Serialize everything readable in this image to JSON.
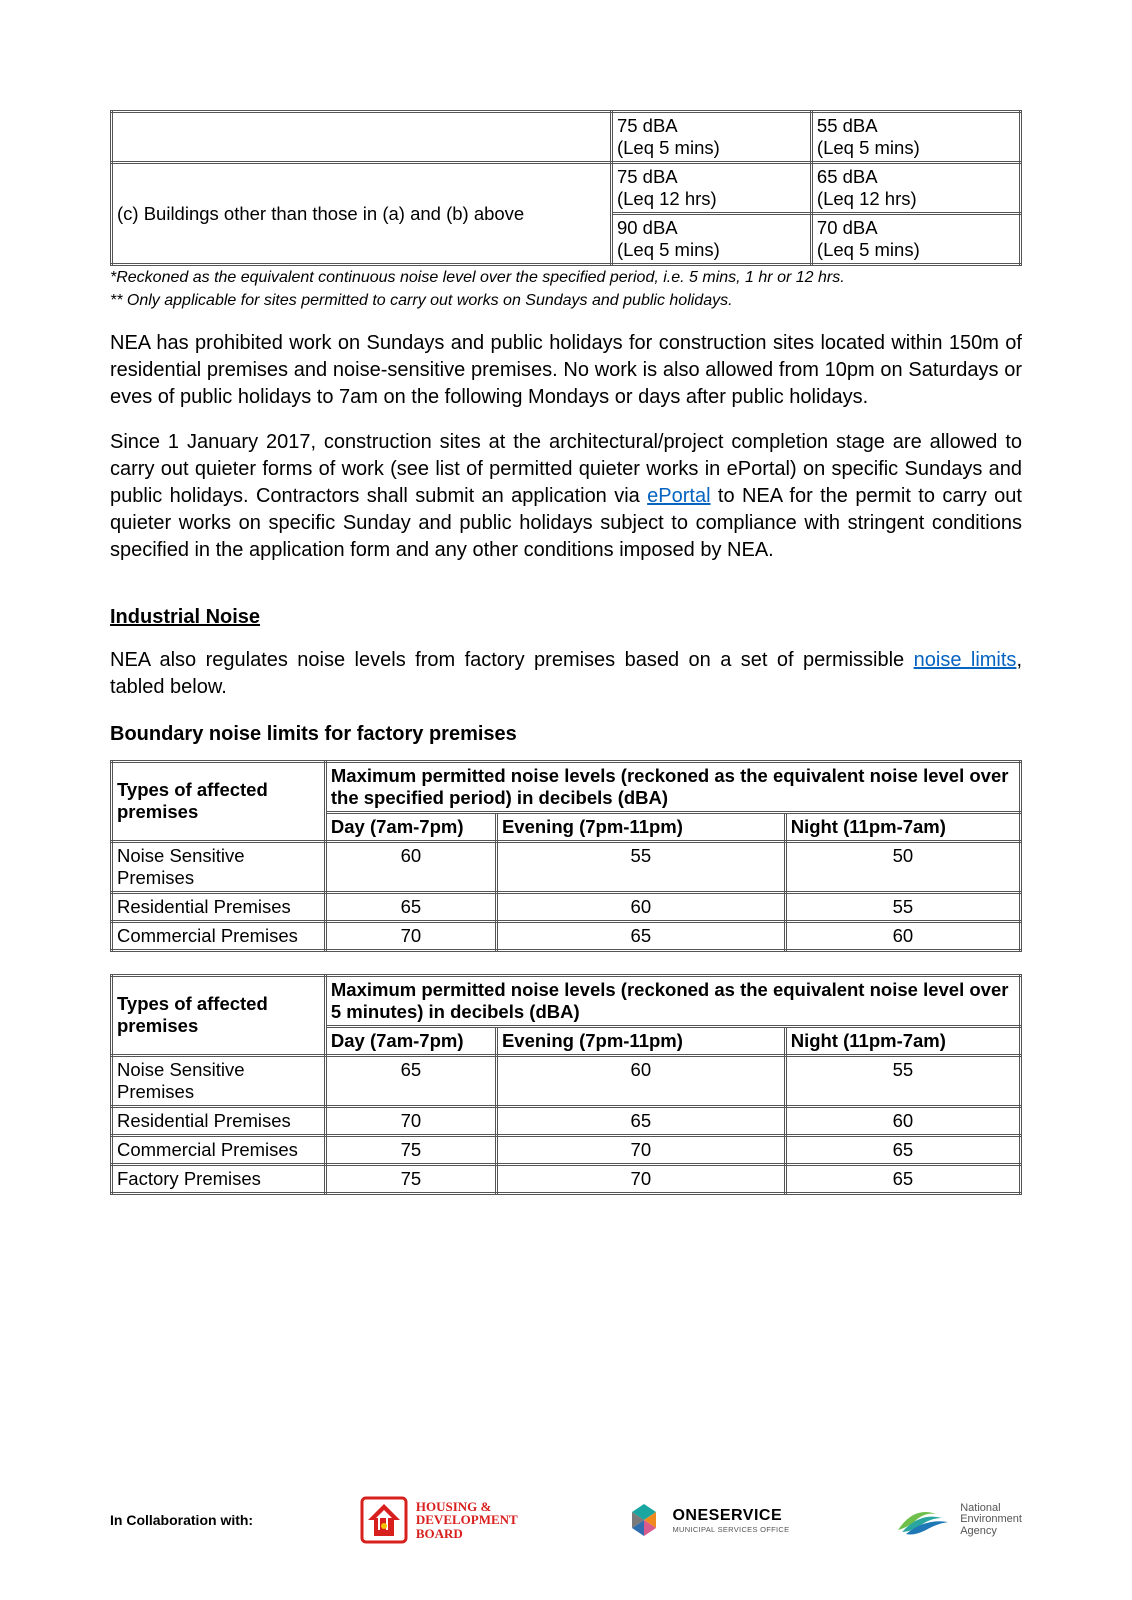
{
  "top_table": {
    "rows": [
      {
        "label": "",
        "c1": "75 dBA\n(Leq 5 mins)",
        "c2": "55 dBA\n(Leq 5 mins)"
      }
    ],
    "merged": {
      "label": "(c) Buildings other than those in (a) and (b) above",
      "r1c1": "75 dBA\n(Leq 12 hrs)",
      "r1c2": "65 dBA\n(Leq 12 hrs)",
      "r2c1": "90 dBA\n(Leq 5 mins)",
      "r2c2": "70 dBA\n(Leq 5 mins)"
    }
  },
  "footnotes": {
    "f1": "*Reckoned as the equivalent continuous noise level over the specified period, i.e. 5 mins, 1 hr or 12 hrs.",
    "f2": "** Only applicable for sites permitted to carry out works on Sundays and public holidays."
  },
  "para1": "NEA has prohibited work on Sundays and public holidays for construction sites located within 150m of residential premises and noise-sensitive premises. No work is also allowed from 10pm on Saturdays or eves of public holidays to 7am on the following Mondays or days after public holidays.",
  "para2a": "Since 1 January 2017, construction sites at the architectural/project completion stage are allowed to carry out quieter forms of work (see list of permitted quieter works in ePortal) on specific Sundays and public holidays. Contractors shall submit an application via ",
  "para2_link": "ePortal",
  "para2b": " to NEA for the permit to carry out quieter works on specific Sunday and public holidays subject to compliance with stringent conditions specified in the application form and any other conditions imposed by NEA.",
  "section_heading": "Industrial Noise",
  "para3a": "NEA also regulates noise levels from factory premises based on a set of permissible ",
  "para3_link": "noise limits",
  "para3b": ", tabled below.",
  "subheading": "Boundary noise limits for factory premises",
  "factory_tables": {
    "header_col1": "Types of affected premises",
    "day": "Day (7am-7pm)",
    "evening": "Evening (7pm-11pm)",
    "night": "Night (11pm-7am)",
    "t1_caption": "Maximum permitted noise levels (reckoned as the equivalent noise level over the specified period) in decibels (dBA)",
    "t1_rows": [
      {
        "label": "Noise Sensitive Premises",
        "d": "60",
        "e": "55",
        "n": "50"
      },
      {
        "label": "Residential Premises",
        "d": "65",
        "e": "60",
        "n": "55"
      },
      {
        "label": "Commercial Premises",
        "d": "70",
        "e": "65",
        "n": "60"
      }
    ],
    "t2_caption": "Maximum permitted noise levels (reckoned as the equivalent noise level over 5 minutes) in decibels (dBA)",
    "t2_rows": [
      {
        "label": "Noise Sensitive Premises",
        "d": "65",
        "e": "60",
        "n": "55"
      },
      {
        "label": "Residential Premises",
        "d": "70",
        "e": "65",
        "n": "60"
      },
      {
        "label": "Commercial Premises",
        "d": "75",
        "e": "70",
        "n": "65"
      },
      {
        "label": "Factory Premises",
        "d": "75",
        "e": "70",
        "n": "65"
      }
    ]
  },
  "footer": {
    "collab_label": "In Collaboration with:",
    "hdb": {
      "line1": "HOUSING &",
      "line2": "DEVELOPMENT",
      "line3": "BOARD",
      "colors": {
        "red": "#d8201f",
        "white": "#ffffff",
        "yellow": "#f3c300"
      }
    },
    "oneservice": {
      "title": "ONESERVICE",
      "sub": "MUNICIPAL SERVICES OFFICE",
      "colors": {
        "teal": "#1aa6a0",
        "orange": "#f08a1f",
        "blue": "#2f6fb0",
        "pink": "#d85a8e"
      }
    },
    "nea": {
      "l1": "National",
      "l2": "Environment",
      "l3": "Agency",
      "colors": {
        "green": "#6fbf4b",
        "teal": "#2aa6a0",
        "blue": "#1d78b5"
      }
    }
  },
  "style": {
    "link_color": "#0563c1",
    "border_color": "#555555",
    "font_family": "Arial"
  }
}
